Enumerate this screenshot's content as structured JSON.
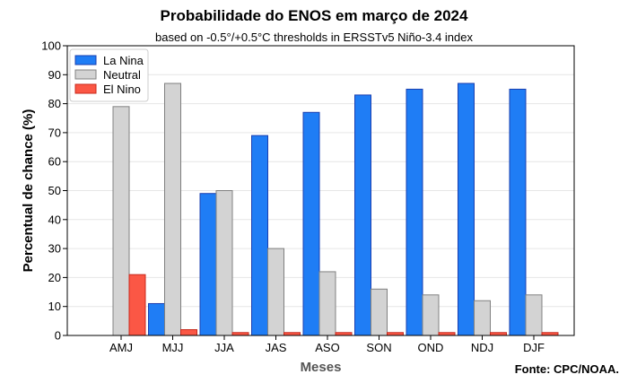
{
  "header": {
    "title": "Probabilidade do ENOS em março de 2024",
    "subtitle": "based on -0.5°/+0.5°C thresholds in ERSSTv5 Niño-3.4 index"
  },
  "footer": {
    "source": "Fonte: CPC/NOAA."
  },
  "chart_data": {
    "type": "bar",
    "title": "Probabilidade do ENOS em março de 2024",
    "subtitle": "based on -0.5°/+0.5°C thresholds in ERSSTv5 Niño-3.4 index",
    "xlabel": "Meses",
    "ylabel": "Percentual de chance (%)",
    "ylim": [
      0,
      100
    ],
    "yticks": [
      0,
      10,
      20,
      30,
      40,
      50,
      60,
      70,
      80,
      90,
      100
    ],
    "grid": "horizontal",
    "legend_position": "top-left",
    "categories": [
      "AMJ",
      "MJJ",
      "JJA",
      "JAS",
      "ASO",
      "SON",
      "OND",
      "NDJ",
      "DJF"
    ],
    "series": [
      {
        "name": "La Nina",
        "color": "#1f7df5",
        "edge": "#1a3fb0",
        "values": [
          0,
          11,
          49,
          69,
          77,
          83,
          85,
          87,
          85
        ]
      },
      {
        "name": "Neutral",
        "color": "#d3d3d3",
        "edge": "#808080",
        "values": [
          79,
          87,
          50,
          30,
          22,
          16,
          14,
          12,
          14
        ]
      },
      {
        "name": "El Nino",
        "color": "#fb5745",
        "edge": "#c8281c",
        "values": [
          21,
          2,
          1,
          1,
          1,
          1,
          1,
          1,
          1
        ]
      }
    ]
  }
}
